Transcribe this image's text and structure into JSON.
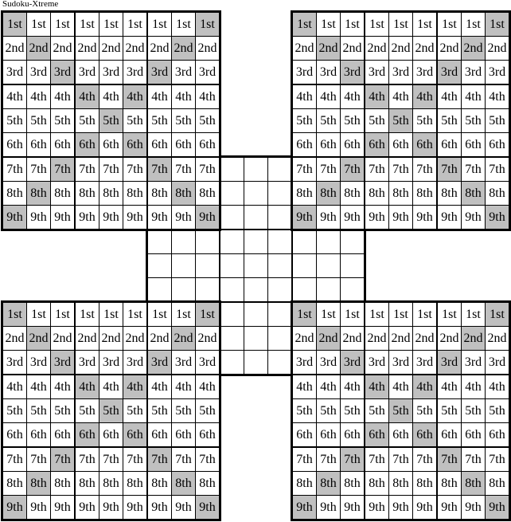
{
  "title": "Sudoku-Xtreme",
  "ordinals": [
    "1st",
    "2nd",
    "3rd",
    "4th",
    "5th",
    "6th",
    "7th",
    "8th",
    "9th"
  ],
  "corner_rows": [
    {
      "label": "1st",
      "shaded_cols": [
        1,
        9
      ]
    },
    {
      "label": "2nd",
      "shaded_cols": [
        2,
        8
      ]
    },
    {
      "label": "3rd",
      "shaded_cols": [
        3,
        7
      ]
    },
    {
      "label": "4th",
      "shaded_cols": [
        4,
        6
      ]
    },
    {
      "label": "5th",
      "shaded_cols": [
        5
      ]
    },
    {
      "label": "6th",
      "shaded_cols": [
        4,
        6
      ]
    },
    {
      "label": "7th",
      "shaded_cols": [
        3,
        7
      ]
    },
    {
      "label": "8th",
      "shaded_cols": [
        2,
        8
      ]
    },
    {
      "label": "9th",
      "shaded_cols": [
        1,
        9
      ]
    }
  ],
  "grids": [
    {
      "id": "center",
      "filled": false
    },
    {
      "id": "top-left",
      "filled": true
    },
    {
      "id": "top-right",
      "filled": true
    },
    {
      "id": "bottom-left",
      "filled": true
    },
    {
      "id": "bottom-right",
      "filled": true
    }
  ],
  "colors": {
    "shaded": "#c0c0c0",
    "grid_line": "#000000",
    "cell_bg": "#ffffff",
    "text": "#000000",
    "page_bg": "#ffffff"
  }
}
